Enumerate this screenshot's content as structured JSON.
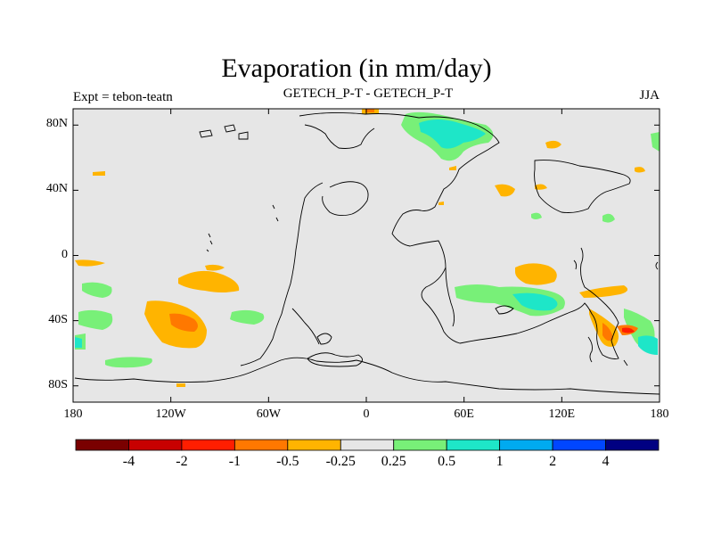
{
  "header": {
    "title": "Evaporation (in mm/day)",
    "left_string": "Expt = tebon-teatn",
    "center_string": "GETECH_P-T - GETECH_P-T",
    "right_string": "JJA"
  },
  "map": {
    "projection": "cylindrical-equidistant",
    "lon_range": [
      -180,
      180
    ],
    "lat_range": [
      -90,
      90
    ],
    "background_color": "#e6e6e6",
    "y_ticks": [
      {
        "lat": 80,
        "label": "80N"
      },
      {
        "lat": 40,
        "label": "40N"
      },
      {
        "lat": 0,
        "label": "0"
      },
      {
        "lat": -40,
        "label": "40S"
      },
      {
        "lat": -80,
        "label": "80S"
      }
    ],
    "x_ticks": [
      {
        "lon": -180,
        "label": "180"
      },
      {
        "lon": -120,
        "label": "120W"
      },
      {
        "lon": -60,
        "label": "60W"
      },
      {
        "lon": 0,
        "label": "0"
      },
      {
        "lon": 60,
        "label": "60E"
      },
      {
        "lon": 120,
        "label": "120E"
      },
      {
        "lon": 180,
        "label": "180"
      }
    ]
  },
  "colorbar": {
    "colors": [
      "#7a0000",
      "#c80000",
      "#ff1e00",
      "#ff7800",
      "#ffb400",
      "#e6e6e6",
      "#78f078",
      "#1ee6c8",
      "#00aaf0",
      "#0046ff",
      "#000082"
    ],
    "labels": [
      "-4",
      "-2",
      "-1",
      "-0.5",
      "-0.25",
      "0.25",
      "0.5",
      "1",
      "2",
      "4"
    ]
  }
}
